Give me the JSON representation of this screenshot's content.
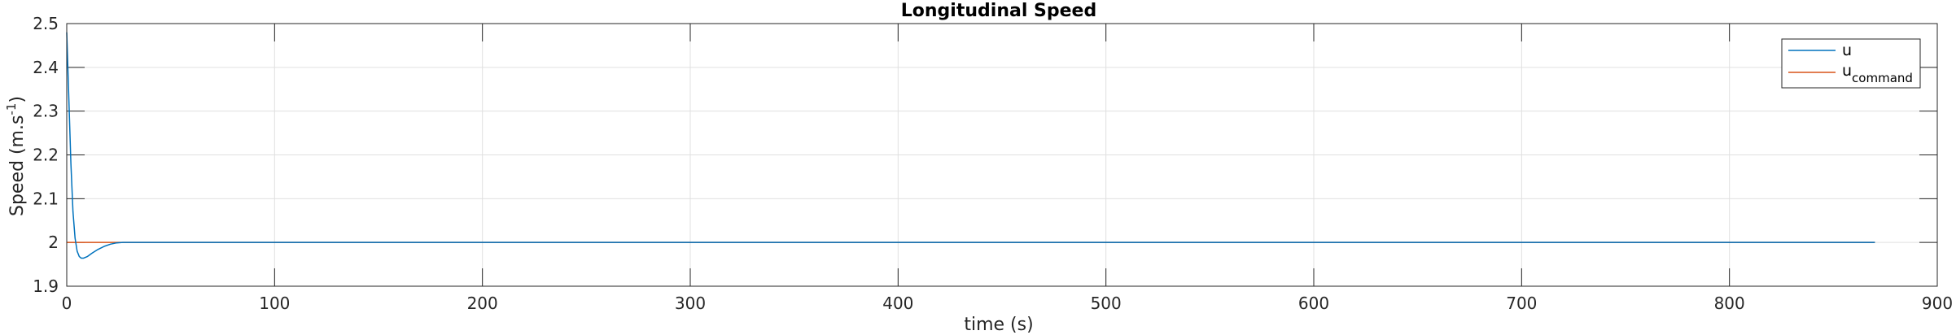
{
  "chart_data": {
    "type": "line",
    "title": "Longitudinal Speed",
    "xlabel": "time (s)",
    "ylabel_main": "Speed (m.s",
    "ylabel_sup": "-1",
    "ylabel_close": ")",
    "xlim": [
      0,
      900
    ],
    "ylim": [
      1.9,
      2.5
    ],
    "xticks": [
      "0",
      "100",
      "200",
      "300",
      "400",
      "500",
      "600",
      "700",
      "800",
      "900"
    ],
    "yticks": [
      "1.9",
      "2",
      "2.1",
      "2.2",
      "2.3",
      "2.4",
      "2.5"
    ],
    "grid": true,
    "legend_placement": "top-right",
    "series": [
      {
        "name": "u",
        "color": "#0072BD",
        "x": [
          0,
          1,
          2,
          3,
          4,
          5,
          6,
          7,
          8,
          10,
          12,
          15,
          18,
          21,
          24,
          27,
          30,
          40,
          80,
          300,
          600,
          870
        ],
        "y": [
          2.48,
          2.33,
          2.18,
          2.07,
          2.01,
          1.98,
          1.968,
          1.964,
          1.964,
          1.968,
          1.975,
          1.984,
          1.991,
          1.996,
          1.999,
          2.0,
          2.0,
          2.0,
          2.0,
          2.0,
          2.0,
          2.0
        ]
      },
      {
        "name_main": "u",
        "name_sub": "command",
        "color": "#D95319",
        "x": [
          0,
          870
        ],
        "y": [
          2.0,
          2.0
        ]
      }
    ]
  }
}
